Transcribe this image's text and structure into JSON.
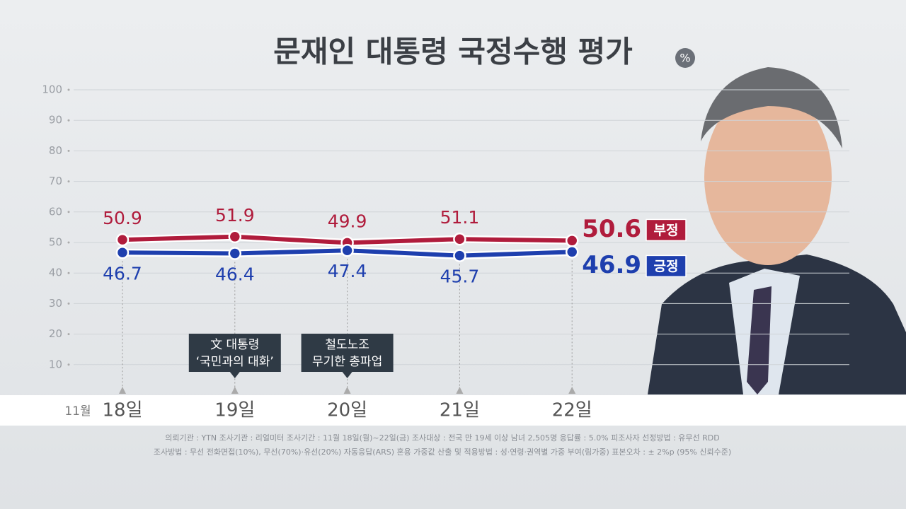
{
  "chart_data": {
    "type": "line",
    "title": "문재인 대통령 국정수행 평가",
    "unit": "%",
    "x_prefix": "11월",
    "categories": [
      "18일",
      "19일",
      "20일",
      "21일",
      "22일"
    ],
    "series": [
      {
        "name": "부정",
        "color": "#b01c3c",
        "values": [
          50.9,
          51.9,
          49.9,
          51.1,
          50.6
        ]
      },
      {
        "name": "긍정",
        "color": "#1e3fae",
        "values": [
          46.7,
          46.4,
          47.4,
          45.7,
          46.9
        ]
      }
    ],
    "ylim": [
      0,
      100
    ],
    "yticks": [
      10,
      20,
      30,
      40,
      50,
      60,
      70,
      80,
      90,
      100
    ],
    "grid": true,
    "annotations": [
      {
        "x": "19일",
        "lines": [
          "文 대통령",
          "‘국민과의 대화’"
        ]
      },
      {
        "x": "20일",
        "lines": [
          "철도노조",
          "무기한 총파업"
        ]
      }
    ],
    "footnotes": [
      "의뢰기관 : YTN     조사기관 : 리얼미터     조사기간 : 11월 18일(월)~22일(금)     조사대상 : 전국 만 19세 이상 남녀 2,505명     응답률 : 5.0%     피조사자 선정방법 : 유무선 RDD",
      "조사방법 : 무선 전화면접(10%), 무선(70%)·유선(20%) 자동응답(ARS) 혼용     가중값 산출 및 적용방법 : 성·연령·권역별 가중 부여(림가중)     표본오차 : ± 2%p (95% 신뢰수준)"
    ]
  }
}
